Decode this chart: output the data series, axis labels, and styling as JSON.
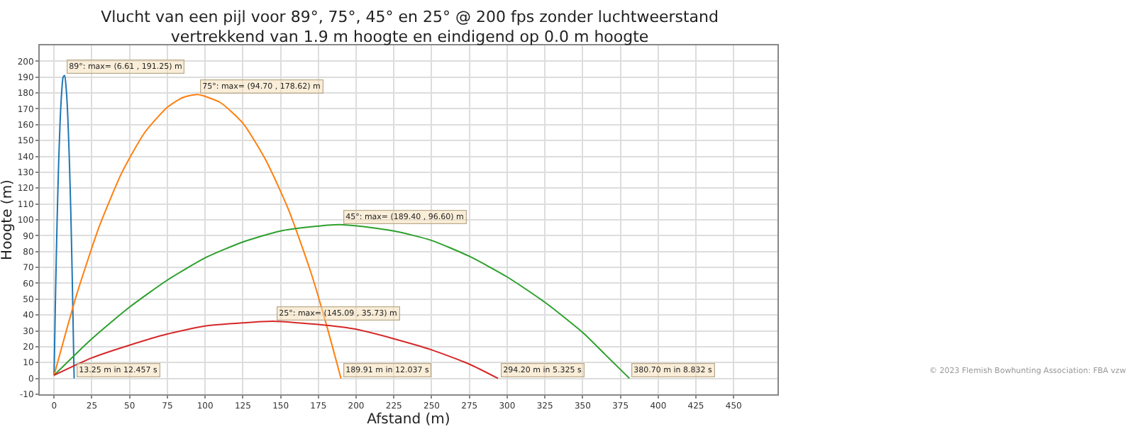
{
  "chart_data": {
    "type": "line",
    "title": "Vlucht van een pijl voor 89°, 75°, 45° en 25° @ 200 fps zonder luchtweerstand",
    "subtitle": "vertrekkend van 1.9 m hoogte en eindigend op 0.0 m hoogte",
    "xlabel": "Afstand (m)",
    "ylabel": "Hoogte (m)",
    "series": [
      {
        "color": "#1f77b4",
        "x": [
          0,
          1,
          2,
          3,
          4,
          5,
          6,
          7,
          8,
          9,
          10,
          11,
          12,
          13,
          13.3
        ],
        "values": [
          2,
          55,
          99,
          135,
          162,
          180,
          190,
          191,
          183,
          167,
          141,
          108,
          65,
          14,
          0
        ]
      },
      {
        "color": "#ff7f0e",
        "x": [
          0,
          15,
          30,
          45,
          60,
          75,
          85,
          95,
          110,
          125,
          140,
          155,
          170,
          180,
          190
        ],
        "values": [
          2,
          53,
          96,
          130,
          155,
          171,
          177,
          179,
          174,
          161,
          138,
          107,
          67,
          35,
          0
        ]
      },
      {
        "color": "#2ca02c",
        "x": [
          0,
          25,
          50,
          75,
          100,
          125,
          150,
          189,
          225,
          250,
          275,
          300,
          325,
          350,
          365,
          381
        ],
        "values": [
          2,
          25,
          45,
          62,
          76,
          86,
          93,
          97,
          93,
          87,
          77,
          64,
          48,
          29,
          15,
          0
        ]
      },
      {
        "color": "#d62728",
        "x": [
          0,
          25,
          50,
          75,
          100,
          125,
          145,
          175,
          200,
          225,
          250,
          275,
          294
        ],
        "values": [
          2,
          13,
          21,
          28,
          33,
          35,
          36,
          34,
          31,
          25,
          18,
          9,
          0
        ]
      }
    ],
    "xlim": [
      -9.5,
      479
    ],
    "xticks": [
      0,
      25,
      50,
      75,
      100,
      125,
      150,
      175,
      200,
      225,
      250,
      275,
      300,
      325,
      350,
      375,
      400,
      425,
      450
    ],
    "ylim": [
      -10,
      210
    ],
    "yticks": [
      -10,
      0,
      10,
      20,
      30,
      40,
      50,
      60,
      70,
      80,
      90,
      100,
      110,
      120,
      130,
      140,
      150,
      160,
      170,
      180,
      190,
      200
    ],
    "grid": true,
    "marker": "none",
    "line_style": "solid",
    "annotations": [
      {
        "text": "89°: max= (6.61 , 191.25) m",
        "x": 6.61,
        "y": 191.25
      },
      {
        "text": "75°: max= (94.70 , 178.62) m",
        "x": 94.7,
        "y": 178.62
      },
      {
        "text": "45°: max= (189.40 , 96.60) m",
        "x": 189.4,
        "y": 96.6
      },
      {
        "text": "25°: max= (145.09 , 35.73) m",
        "x": 145.09,
        "y": 35.73
      },
      {
        "text": "13.25 m in 12.457 s",
        "x": 13.25,
        "y": 0
      },
      {
        "text": "189.91 m in 12.037 s",
        "x": 189.91,
        "y": 0
      },
      {
        "text": "294.20 m in 5.325 s",
        "x": 294.2,
        "y": 0
      },
      {
        "text": "380.70 m in 8.832 s",
        "x": 380.7,
        "y": 0
      },
      "© 2023 Flemish Bowhunting Association: FBA vzw"
    ]
  }
}
